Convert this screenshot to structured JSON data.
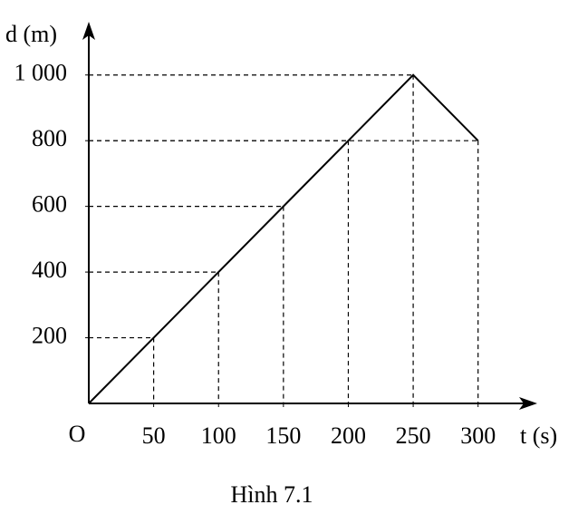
{
  "chart_data": {
    "type": "line",
    "caption": "Hình 7.1",
    "y_label": "d (m)",
    "x_label": "t (s)",
    "origin_label": "O",
    "x": [
      0,
      50,
      100,
      150,
      200,
      250,
      300
    ],
    "series": [
      {
        "color": "#000000",
        "values": [
          0,
          200,
          400,
          600,
          800,
          1000,
          800
        ]
      }
    ],
    "xlim": [
      0,
      340
    ],
    "ylim": [
      0,
      1140
    ],
    "xticks": [
      50,
      100,
      150,
      200,
      250,
      300
    ],
    "yticks": [
      200,
      400,
      600,
      800,
      {
        "value": 1000,
        "label": "1 000"
      }
    ],
    "guide_lines": true
  }
}
